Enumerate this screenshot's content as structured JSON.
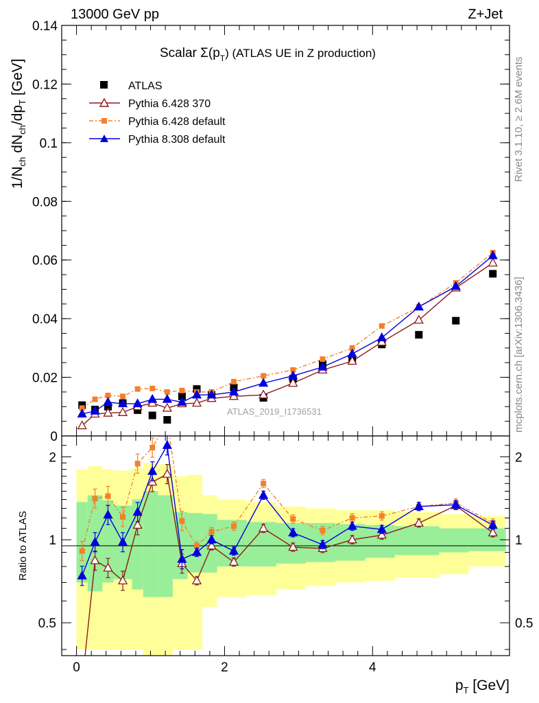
{
  "header": {
    "left": "13000 GeV pp",
    "right": "Z+Jet"
  },
  "side_labels": {
    "rivet": "Rivet 3.1.10, ≥ 2.6M events",
    "mcplots": "mcplots.cern.ch [arXiv:1306.3436]"
  },
  "chart_data": [
    {
      "type": "scatter",
      "panel": "main",
      "title": "Scalar Σ(pT) (ATLAS UE in Z production)",
      "title_parts": {
        "prefix": "Scalar Σ(p",
        "sub": "T",
        "suffix": ") (ATLAS UE in Z production)"
      },
      "watermark": "ATLAS_2019_I1736531",
      "ylabel": "1/Nch dNch/dpT [GeV]",
      "xlabel": "pT [GeV]",
      "xlim": [
        -0.2,
        5.85
      ],
      "ylim": [
        0,
        0.14
      ],
      "ytick_labels": [
        "0",
        "0.02",
        "0.04",
        "0.06",
        "0.08",
        "0.1",
        "0.12",
        "0.14"
      ],
      "legend_position": "top-left",
      "x": [
        0.075,
        0.25,
        0.425,
        0.625,
        0.825,
        1.025,
        1.225,
        1.425,
        1.625,
        1.825,
        2.125,
        2.525,
        2.925,
        3.325,
        3.725,
        4.125,
        4.625,
        5.125,
        5.625
      ],
      "series": [
        {
          "name": "ATLAS",
          "marker": "square",
          "color": "#000000",
          "values": [
            0.0105,
            0.009,
            0.01,
            0.0112,
            0.0088,
            0.007,
            0.0055,
            0.0135,
            0.016,
            0.014,
            0.0165,
            0.013,
            0.0195,
            0.0245,
            0.0258,
            0.0312,
            0.0345,
            0.0393,
            0.0553
          ]
        },
        {
          "name": "Pythia 6.428 370",
          "marker": "open-triangle",
          "color": "#8b1a1a",
          "values": [
            0.0035,
            0.0075,
            0.0078,
            0.008,
            0.01,
            0.0112,
            0.0095,
            0.011,
            0.0112,
            0.0128,
            0.0135,
            0.014,
            0.018,
            0.0225,
            0.0255,
            0.032,
            0.0395,
            0.0505,
            0.059
          ]
        },
        {
          "name": "Pythia 6.428 default",
          "marker": "filled-square-small",
          "color": "#f4802a",
          "values": [
            0.0095,
            0.0125,
            0.0138,
            0.0135,
            0.016,
            0.0162,
            0.015,
            0.0155,
            0.015,
            0.015,
            0.0185,
            0.0205,
            0.0225,
            0.0262,
            0.03,
            0.0375,
            0.044,
            0.0522,
            0.0625
          ]
        },
        {
          "name": "Pythia 8.308 default",
          "marker": "filled-triangle",
          "color": "#0000dd",
          "values": [
            0.0075,
            0.0085,
            0.0115,
            0.011,
            0.011,
            0.0125,
            0.0125,
            0.0115,
            0.014,
            0.014,
            0.015,
            0.018,
            0.0205,
            0.0235,
            0.028,
            0.0335,
            0.044,
            0.051,
            0.0615
          ]
        }
      ]
    },
    {
      "type": "line",
      "panel": "ratio",
      "ylabel": "Ratio to ATLAS",
      "xlabel": "pT [GeV]",
      "xlim": [
        -0.2,
        5.85
      ],
      "ylim": [
        0.38,
        2.38
      ],
      "ytick_labels": [
        "0.5",
        "1",
        "2"
      ],
      "xtick_labels": [
        "0",
        "2",
        "4"
      ],
      "x": [
        0.075,
        0.25,
        0.425,
        0.625,
        0.825,
        1.025,
        1.225,
        1.425,
        1.625,
        1.825,
        2.125,
        2.525,
        2.925,
        3.325,
        3.725,
        4.125,
        4.625,
        5.125,
        5.625
      ],
      "band_edges": [
        0.0,
        0.15,
        0.35,
        0.5,
        0.75,
        0.9,
        1.1,
        1.3,
        1.5,
        1.7,
        1.9,
        2.3,
        2.7,
        3.1,
        3.5,
        3.9,
        4.3,
        4.9,
        5.3,
        5.8
      ],
      "band_green_lo": [
        0.7,
        0.65,
        0.7,
        0.72,
        0.66,
        0.62,
        0.62,
        0.72,
        0.76,
        0.76,
        0.8,
        0.8,
        0.82,
        0.83,
        0.84,
        0.86,
        0.88,
        0.9,
        0.91
      ],
      "band_green_hi": [
        1.37,
        1.45,
        1.39,
        1.33,
        1.4,
        1.5,
        1.45,
        1.26,
        1.25,
        1.24,
        1.18,
        1.16,
        1.15,
        1.15,
        1.14,
        1.13,
        1.12,
        1.1,
        1.1
      ],
      "band_yellow_lo": [
        0.4,
        0.4,
        0.4,
        0.4,
        0.4,
        0.38,
        0.38,
        0.4,
        0.4,
        0.57,
        0.62,
        0.63,
        0.66,
        0.68,
        0.7,
        0.71,
        0.73,
        0.75,
        0.8
      ],
      "band_yellow_hi": [
        1.8,
        1.85,
        1.8,
        1.78,
        1.82,
        1.9,
        1.88,
        1.7,
        1.72,
        1.45,
        1.4,
        1.37,
        1.32,
        1.3,
        1.28,
        1.28,
        1.26,
        1.24,
        1.22
      ],
      "series": [
        {
          "name": "Pythia 6.428 370",
          "color": "#8b1a1a",
          "values": [
            0.3,
            0.84,
            0.79,
            0.71,
            1.13,
            1.62,
            1.73,
            0.82,
            0.71,
            0.95,
            0.83,
            1.1,
            0.94,
            0.93,
            1.0,
            1.04,
            1.15,
            1.33,
            1.06
          ]
        },
        {
          "name": "Pythia 6.428 default",
          "color": "#f4802a",
          "values": [
            0.91,
            1.41,
            1.44,
            1.21,
            1.89,
            2.16,
            2.7,
            1.17,
            0.95,
            1.07,
            1.12,
            1.6,
            1.19,
            1.08,
            1.2,
            1.22,
            1.32,
            1.36,
            1.15
          ]
        },
        {
          "name": "Pythia 8.308 default",
          "color": "#0000dd",
          "values": [
            0.74,
            0.98,
            1.23,
            0.98,
            1.26,
            1.77,
            2.2,
            0.85,
            0.9,
            1.0,
            0.91,
            1.45,
            1.06,
            0.96,
            1.12,
            1.09,
            1.32,
            1.34,
            1.13
          ]
        }
      ]
    }
  ]
}
